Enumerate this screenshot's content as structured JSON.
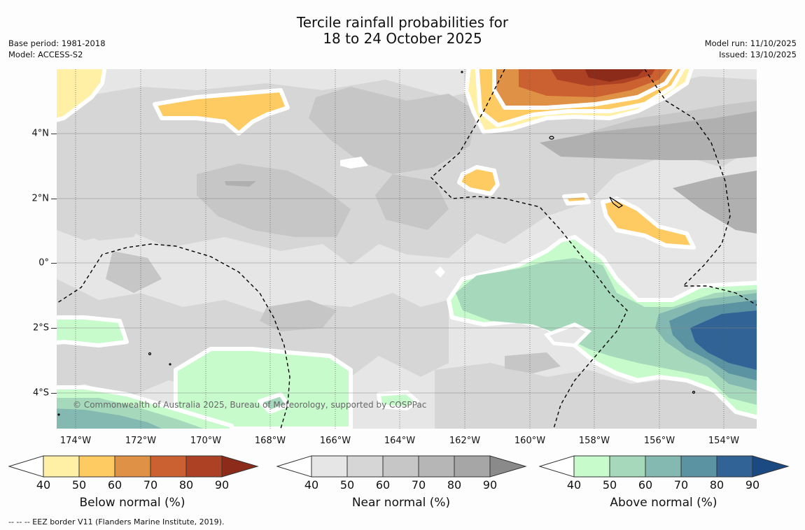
{
  "title": {
    "line1": "Tercile rainfall probabilities for",
    "line2": "18 to 24 October 2025"
  },
  "meta_left": {
    "base_period": "Base period: 1981-2018",
    "model": "Model: ACCESS-S2"
  },
  "meta_right": {
    "model_run": "Model run: 11/10/2025",
    "issued": "Issued: 13/10/2025"
  },
  "map": {
    "x_ticks": [
      "174°W",
      "172°W",
      "170°W",
      "168°W",
      "166°W",
      "164°W",
      "162°W",
      "160°W",
      "158°W",
      "156°W",
      "154°W"
    ],
    "y_ticks": [
      "4°N",
      "2°N",
      "0°",
      "2°S",
      "4°S"
    ],
    "credit": "© Commonwealth of Australia 2025, Bureau of Meteorology, supported by COSPPac"
  },
  "colorbars": [
    {
      "label": "Below normal (%)",
      "ticks": [
        "40",
        "50",
        "60",
        "70",
        "80",
        "90"
      ],
      "colors": [
        "#fff0a6",
        "#fecb63",
        "#df9145",
        "#cb6030",
        "#ad4124",
        "#8c2b1a"
      ]
    },
    {
      "label": "Near normal (%)",
      "ticks": [
        "40",
        "50",
        "60",
        "70",
        "80",
        "90"
      ],
      "colors": [
        "#e6e6e6",
        "#d6d6d6",
        "#c6c6c6",
        "#b6b6b6",
        "#a6a6a6",
        "#8a8a8a"
      ]
    },
    {
      "label": "Above normal (%)",
      "ticks": [
        "40",
        "50",
        "60",
        "70",
        "80",
        "90"
      ],
      "colors": [
        "#c7fbcc",
        "#a6d8bc",
        "#84b9b1",
        "#5c93a3",
        "#316396",
        "#1b4a82"
      ]
    }
  ],
  "footnote": "-- -- -- EEZ border V11 (Flanders Marine Institute, 2019)."
}
